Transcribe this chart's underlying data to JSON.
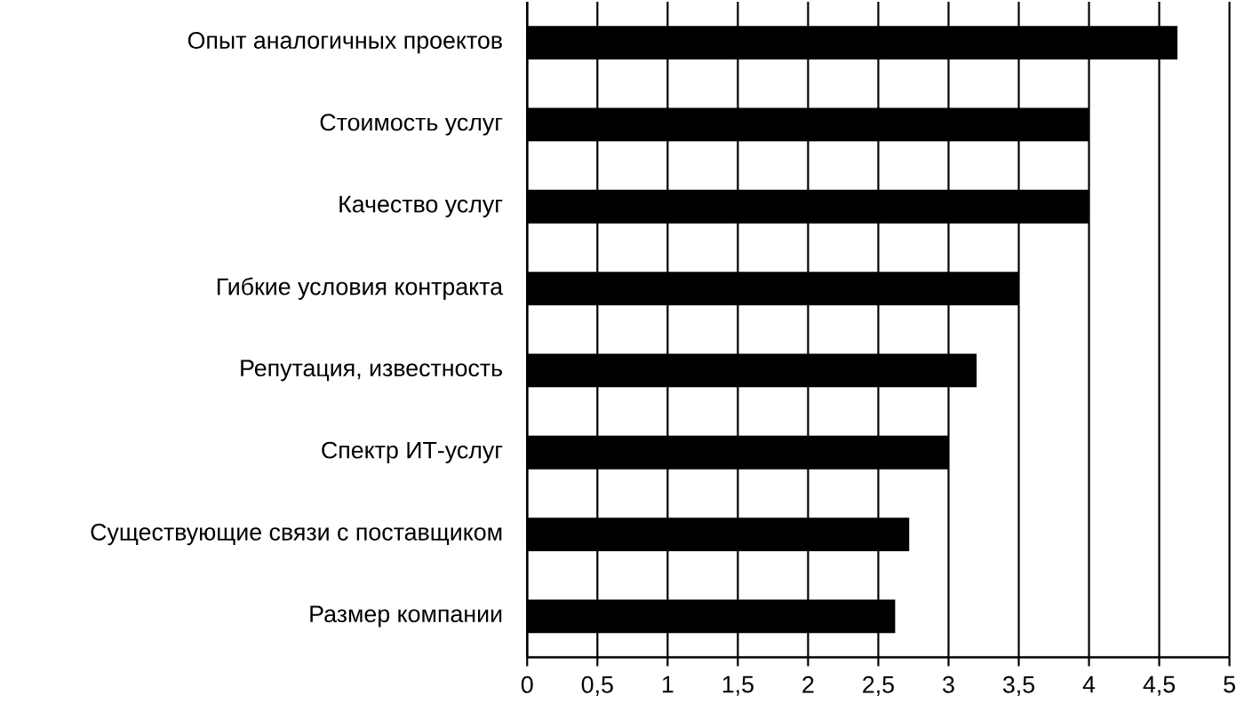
{
  "chart_data": {
    "type": "bar",
    "orientation": "horizontal",
    "categories": [
      "Опыт аналогичных проектов",
      "Стоимость услуг",
      "Качество услуг",
      "Гибкие условия контракта",
      "Репутация, известность",
      "Спектр ИТ-услуг",
      "Существующие связи с поставщиком",
      "Размер компании"
    ],
    "values": [
      4.63,
      4.0,
      4.0,
      3.5,
      3.2,
      3.0,
      2.72,
      2.62
    ],
    "color": "#000000",
    "xlim": [
      0,
      5
    ],
    "xticks": [
      0,
      {
        "value": 0.5,
        "label": "0,5"
      },
      1,
      {
        "value": 1.5,
        "label": "1,5"
      },
      2,
      {
        "value": 2.5,
        "label": "2,5"
      },
      3,
      {
        "value": 3.5,
        "label": "3,5"
      },
      4,
      {
        "value": 4.5,
        "label": "4,5"
      },
      5
    ],
    "grid": "x"
  }
}
